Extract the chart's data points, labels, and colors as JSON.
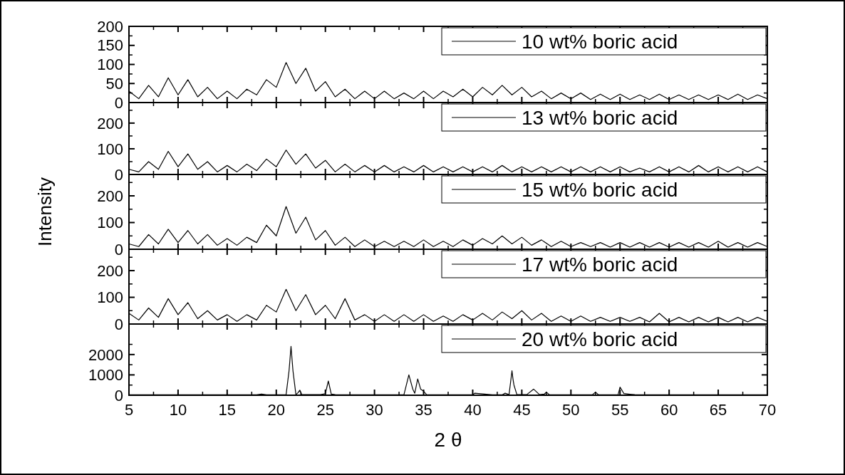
{
  "chart_data": [
    {
      "type": "line",
      "tick_labels": "y",
      "legend": "top right",
      "grid": false,
      "xlim": [
        5,
        70
      ],
      "xticks": [
        5,
        10,
        15,
        20,
        25,
        30,
        35,
        40,
        45,
        50,
        55,
        60,
        65,
        70
      ],
      "ylim": [
        0,
        200
      ],
      "yticks": [
        0,
        50,
        100,
        150,
        200
      ],
      "x": [
        5,
        6,
        7,
        8,
        9,
        10,
        11,
        12,
        13,
        14,
        15,
        16,
        17,
        18,
        19,
        20,
        21,
        22,
        23,
        24,
        25,
        26,
        27,
        28,
        29,
        30,
        31,
        32,
        33,
        34,
        35,
        36,
        37,
        38,
        39,
        40,
        41,
        42,
        43,
        44,
        45,
        46,
        47,
        48,
        49,
        50,
        51,
        52,
        53,
        54,
        55,
        56,
        57,
        58,
        59,
        60,
        61,
        62,
        63,
        64,
        65,
        66,
        67,
        68,
        69,
        70
      ],
      "series": [
        {
          "name": "10 wt% boric acid",
          "color": "#000000",
          "values": [
            30,
            10,
            45,
            15,
            65,
            20,
            60,
            15,
            40,
            10,
            30,
            10,
            35,
            20,
            60,
            40,
            105,
            50,
            90,
            30,
            55,
            15,
            35,
            10,
            30,
            10,
            30,
            10,
            25,
            10,
            30,
            10,
            30,
            15,
            35,
            15,
            40,
            20,
            45,
            20,
            40,
            15,
            30,
            10,
            25,
            10,
            25,
            8,
            22,
            8,
            22,
            8,
            20,
            8,
            22,
            8,
            20,
            8,
            20,
            8,
            20,
            8,
            22,
            8,
            20,
            10
          ]
        }
      ]
    },
    {
      "type": "line",
      "tick_labels": "y",
      "legend": "top right",
      "grid": false,
      "xlim": [
        5,
        70
      ],
      "xticks": [
        5,
        10,
        15,
        20,
        25,
        30,
        35,
        40,
        45,
        50,
        55,
        60,
        65,
        70
      ],
      "ylim": [
        0,
        280
      ],
      "yticks": [
        0,
        100,
        200
      ],
      "x": [
        5,
        6,
        7,
        8,
        9,
        10,
        11,
        12,
        13,
        14,
        15,
        16,
        17,
        18,
        19,
        20,
        21,
        22,
        23,
        24,
        25,
        26,
        27,
        28,
        29,
        30,
        31,
        32,
        33,
        34,
        35,
        36,
        37,
        38,
        39,
        40,
        41,
        42,
        43,
        44,
        45,
        46,
        47,
        48,
        49,
        50,
        51,
        52,
        53,
        54,
        55,
        56,
        57,
        58,
        59,
        60,
        61,
        62,
        63,
        64,
        65,
        66,
        67,
        68,
        69,
        70
      ],
      "series": [
        {
          "name": "13 wt% boric acid",
          "color": "#000000",
          "values": [
            20,
            10,
            50,
            20,
            90,
            30,
            80,
            20,
            50,
            10,
            35,
            10,
            40,
            15,
            60,
            30,
            95,
            40,
            80,
            25,
            55,
            10,
            40,
            10,
            35,
            10,
            35,
            10,
            30,
            10,
            35,
            10,
            30,
            10,
            30,
            10,
            30,
            10,
            35,
            10,
            30,
            10,
            30,
            10,
            30,
            10,
            30,
            10,
            30,
            10,
            30,
            10,
            25,
            10,
            30,
            10,
            30,
            10,
            35,
            10,
            30,
            10,
            30,
            10,
            30,
            10
          ]
        }
      ]
    },
    {
      "type": "line",
      "tick_labels": "y",
      "legend": "top right",
      "grid": false,
      "xlim": [
        5,
        70
      ],
      "xticks": [
        5,
        10,
        15,
        20,
        25,
        30,
        35,
        40,
        45,
        50,
        55,
        60,
        65,
        70
      ],
      "ylim": [
        0,
        280
      ],
      "yticks": [
        0,
        100,
        200
      ],
      "ylabel": "Intensity",
      "x": [
        5,
        6,
        7,
        8,
        9,
        10,
        11,
        12,
        13,
        14,
        15,
        16,
        17,
        18,
        19,
        20,
        21,
        22,
        23,
        24,
        25,
        26,
        27,
        28,
        29,
        30,
        31,
        32,
        33,
        34,
        35,
        36,
        37,
        38,
        39,
        40,
        41,
        42,
        43,
        44,
        45,
        46,
        47,
        48,
        49,
        50,
        51,
        52,
        53,
        54,
        55,
        56,
        57,
        58,
        59,
        60,
        61,
        62,
        63,
        64,
        65,
        66,
        67,
        68,
        69,
        70
      ],
      "series": [
        {
          "name": "15 wt% boric acid",
          "color": "#000000",
          "values": [
            20,
            10,
            55,
            20,
            75,
            25,
            70,
            20,
            55,
            15,
            40,
            15,
            45,
            25,
            90,
            50,
            160,
            60,
            120,
            35,
            70,
            15,
            45,
            10,
            35,
            10,
            30,
            10,
            30,
            10,
            35,
            10,
            30,
            10,
            35,
            15,
            40,
            20,
            50,
            20,
            45,
            15,
            35,
            10,
            30,
            10,
            25,
            10,
            25,
            8,
            25,
            8,
            25,
            8,
            25,
            8,
            25,
            8,
            25,
            8,
            30,
            8,
            25,
            8,
            25,
            10
          ]
        }
      ]
    },
    {
      "type": "line",
      "tick_labels": "y",
      "legend": "top right",
      "grid": false,
      "xlim": [
        5,
        70
      ],
      "xticks": [
        5,
        10,
        15,
        20,
        25,
        30,
        35,
        40,
        45,
        50,
        55,
        60,
        65,
        70
      ],
      "ylim": [
        0,
        280
      ],
      "yticks": [
        0,
        100,
        200
      ],
      "x": [
        5,
        6,
        7,
        8,
        9,
        10,
        11,
        12,
        13,
        14,
        15,
        16,
        17,
        18,
        19,
        20,
        21,
        22,
        23,
        24,
        25,
        26,
        27,
        28,
        29,
        30,
        31,
        32,
        33,
        34,
        35,
        36,
        37,
        38,
        39,
        40,
        41,
        42,
        43,
        44,
        45,
        46,
        47,
        48,
        49,
        50,
        51,
        52,
        53,
        54,
        55,
        56,
        57,
        58,
        59,
        60,
        61,
        62,
        63,
        64,
        65,
        66,
        67,
        68,
        69,
        70
      ],
      "series": [
        {
          "name": "17 wt% boric acid",
          "color": "#000000",
          "values": [
            40,
            15,
            60,
            25,
            95,
            35,
            80,
            20,
            50,
            15,
            35,
            10,
            35,
            15,
            70,
            45,
            130,
            50,
            110,
            35,
            70,
            20,
            95,
            15,
            35,
            10,
            35,
            10,
            35,
            10,
            35,
            10,
            30,
            10,
            35,
            15,
            40,
            15,
            45,
            20,
            50,
            15,
            40,
            10,
            30,
            10,
            30,
            10,
            25,
            10,
            25,
            10,
            25,
            8,
            40,
            8,
            25,
            8,
            25,
            8,
            25,
            8,
            25,
            8,
            25,
            10
          ]
        }
      ]
    },
    {
      "type": "line",
      "legend": "top right",
      "grid": false,
      "xlim": [
        5,
        70
      ],
      "xticks": [
        5,
        10,
        15,
        20,
        25,
        30,
        35,
        40,
        45,
        50,
        55,
        60,
        65,
        70
      ],
      "ylim": [
        0,
        3500
      ],
      "yticks": [
        0,
        1000,
        2000
      ],
      "xlabel": "2 θ",
      "x": [
        5,
        10,
        15,
        18,
        18.5,
        19,
        21,
        21.3,
        21.5,
        21.7,
        22,
        22.2,
        22.4,
        22.6,
        24.5,
        25,
        25.3,
        25.6,
        26,
        28,
        30,
        33,
        33.5,
        33.9,
        34.1,
        34.4,
        34.7,
        35,
        35.3,
        36,
        38,
        40,
        40.2,
        42,
        43,
        43.3,
        43.7,
        44,
        44.1,
        44.2,
        44.5,
        45.5,
        46.2,
        46.8,
        47.3,
        47.5,
        47.8,
        50,
        52.2,
        52.5,
        52.8,
        54.8,
        55,
        55.4,
        56,
        56.5,
        57,
        60,
        65,
        70
      ],
      "series": [
        {
          "name": "20 wt% boric acid",
          "color": "#000000",
          "values": [
            20,
            20,
            20,
            20,
            60,
            20,
            30,
            1200,
            2400,
            1200,
            30,
            120,
            250,
            30,
            30,
            80,
            700,
            60,
            30,
            20,
            20,
            30,
            1000,
            300,
            100,
            800,
            300,
            200,
            30,
            20,
            20,
            20,
            100,
            20,
            20,
            100,
            30,
            1200,
            800,
            500,
            30,
            30,
            300,
            30,
            60,
            150,
            30,
            20,
            30,
            150,
            30,
            20,
            400,
            80,
            50,
            30,
            20,
            20,
            20,
            20
          ]
        }
      ]
    }
  ]
}
